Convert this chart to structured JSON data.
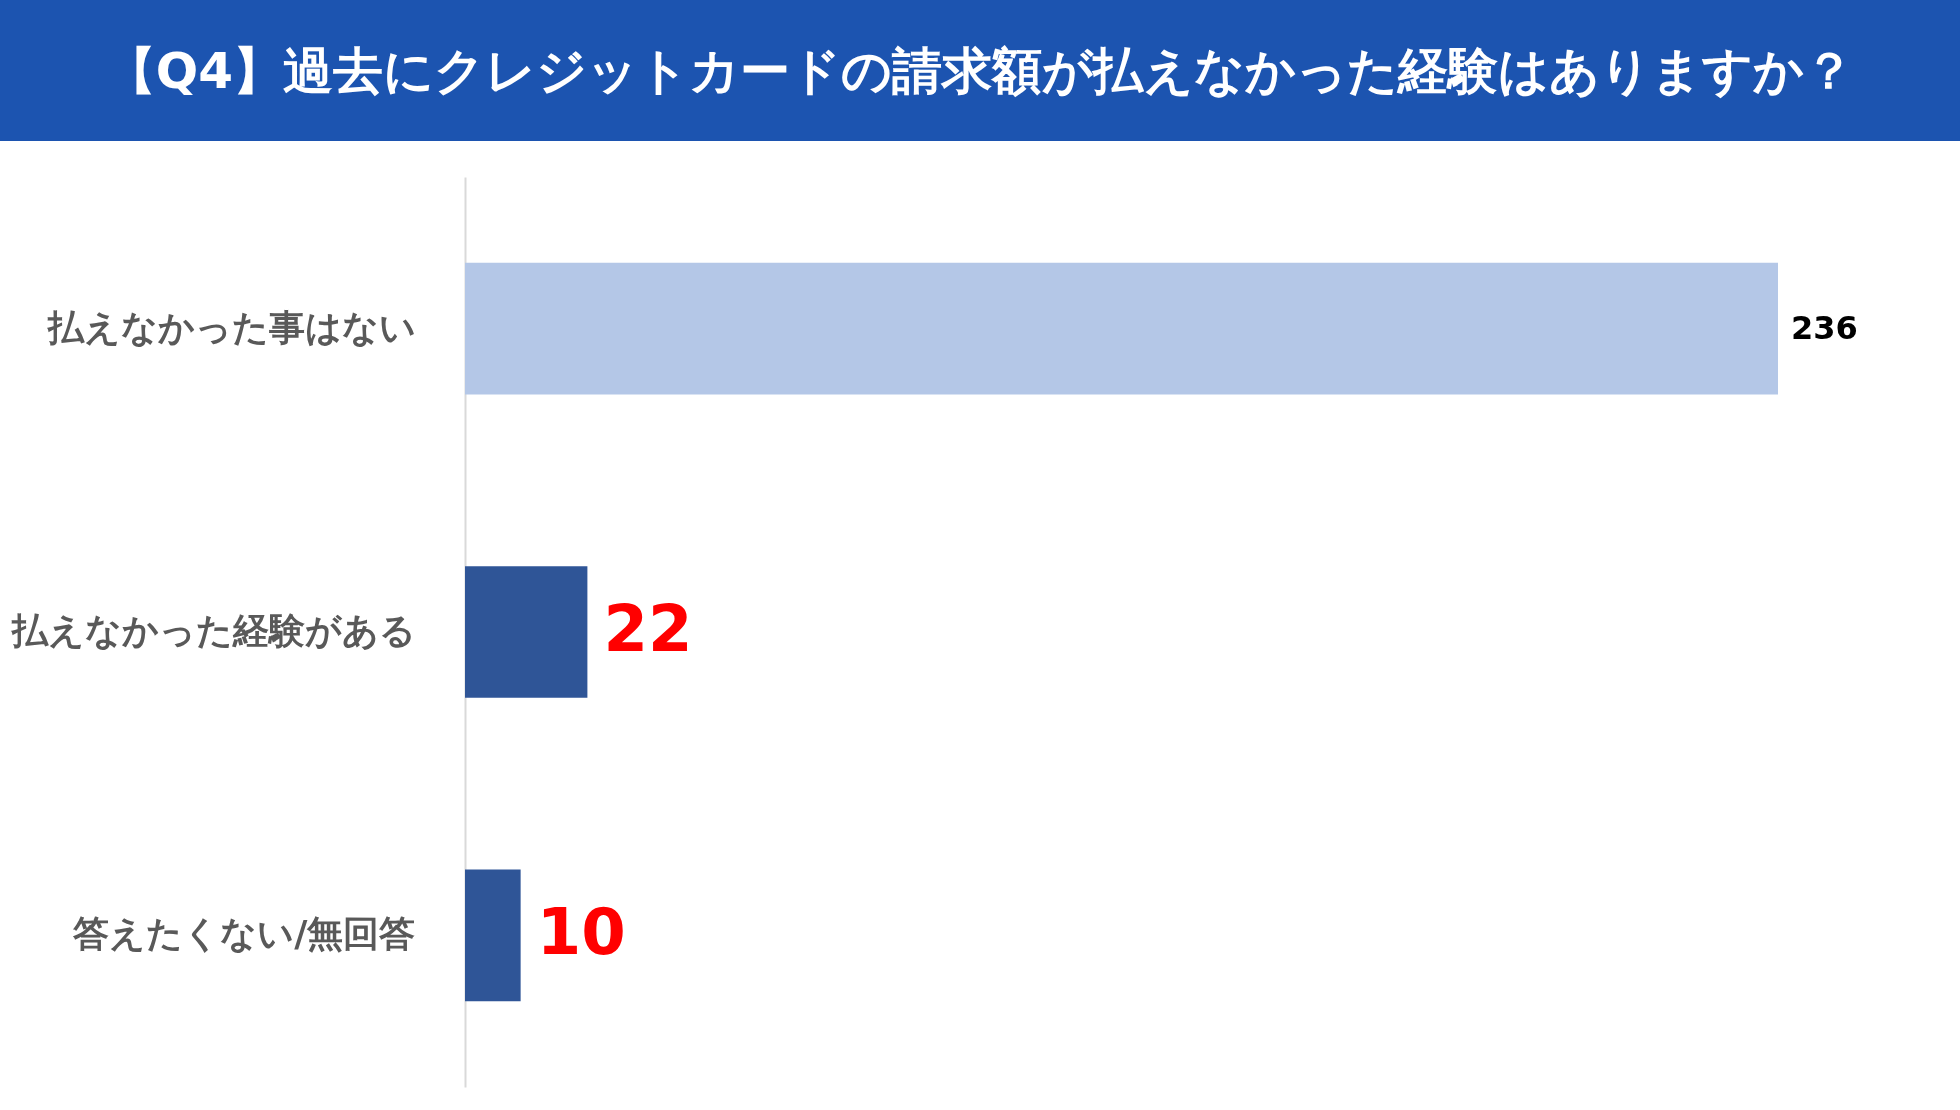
{
  "chart_data": {
    "type": "bar",
    "orientation": "horizontal",
    "title": "【Q4】過去にクレジットカードの請求額が払えなかった経験はありますか？",
    "categories": [
      "払えなかった事はない",
      "払えなかった経験がある",
      "答えたくない/無回答"
    ],
    "values": [
      236,
      22,
      10
    ],
    "colors": [
      "#b4c7e7",
      "#2f5597",
      "#2f5597"
    ],
    "data_labels": true,
    "tick_labels": "y"
  }
}
